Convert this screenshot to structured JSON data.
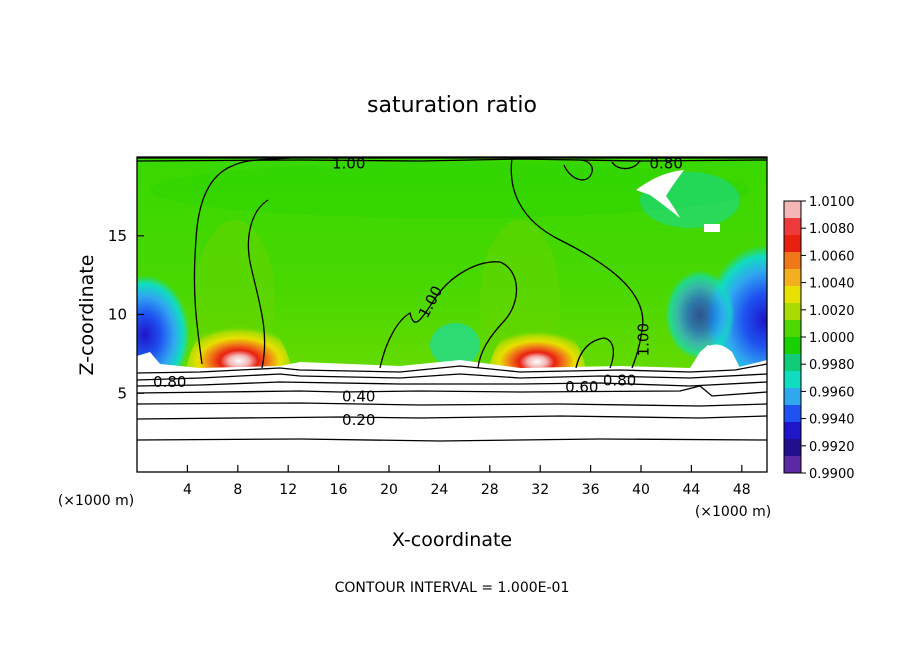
{
  "chart_data": {
    "type": "heatmap",
    "title": "saturation ratio",
    "xlabel": "X-coordinate",
    "ylabel": "Z-coordinate",
    "x_unit": "(×1000 m)",
    "x_unit_right": "(×1000 m)",
    "xlim": [
      0,
      50
    ],
    "ylim": [
      0,
      20
    ],
    "x_ticks": [
      4,
      8,
      12,
      16,
      20,
      24,
      28,
      32,
      36,
      40,
      44,
      48
    ],
    "y_ticks": [
      5,
      10,
      15
    ],
    "footnote": "CONTOUR INTERVAL = 1.000E-01",
    "colorbar": {
      "labels": [
        "1.0100",
        "1.0080",
        "1.0060",
        "1.0040",
        "1.0020",
        "1.0000",
        "0.9980",
        "0.9960",
        "0.9940",
        "0.9920",
        "0.9900"
      ],
      "colors": [
        "#f4b6b6",
        "#ee3a3a",
        "#e82010",
        "#f07818",
        "#f2b020",
        "#e8e000",
        "#a8dc00",
        "#4ed800",
        "#19d000",
        "#10cc78",
        "#10dcc0",
        "#30a8f0",
        "#1f52f0",
        "#1e16c8",
        "#20108e",
        "#5a2aa6"
      ]
    },
    "contour_labels": [
      {
        "text": "1.00",
        "x": 16.8,
        "y": 19.6,
        "angle": 0
      },
      {
        "text": "1.00",
        "x": 23.3,
        "y": 10.8,
        "angle": -62
      },
      {
        "text": "1.00",
        "x": 40.2,
        "y": 8.4,
        "angle": -90
      },
      {
        "text": "0.80",
        "x": 42.0,
        "y": 19.6,
        "angle": 0
      },
      {
        "text": "0.80",
        "x": 2.6,
        "y": 5.7,
        "angle": 0
      },
      {
        "text": "0.60",
        "x": 35.3,
        "y": 5.4,
        "angle": 0
      },
      {
        "text": "0.80",
        "x": 38.3,
        "y": 5.8,
        "angle": 0
      },
      {
        "text": "0.40",
        "x": 17.6,
        "y": 4.8,
        "angle": 0
      },
      {
        "text": "0.20",
        "x": 17.6,
        "y": 3.3,
        "angle": 0
      }
    ]
  }
}
